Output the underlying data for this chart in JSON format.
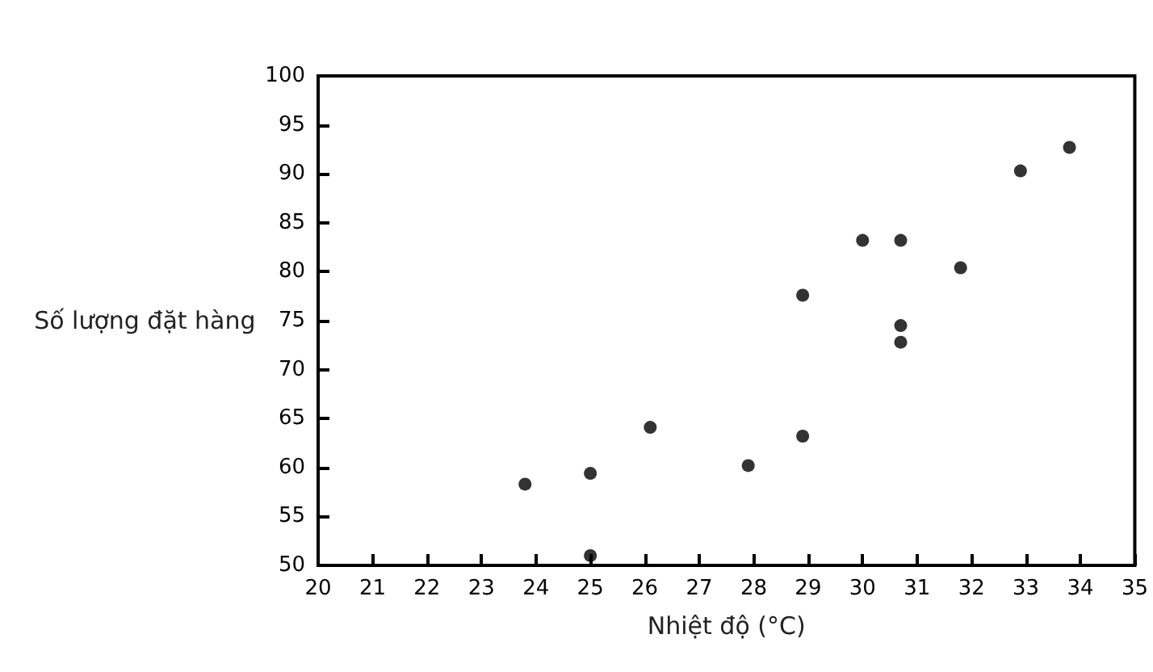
{
  "chart_data": {
    "type": "scatter",
    "xlabel": "Nhiệt độ (°C)",
    "ylabel": "Số lượng đặt hàng",
    "x": [
      23.8,
      25.0,
      25.0,
      26.1,
      27.9,
      28.9,
      28.9,
      30.0,
      30.7,
      30.7,
      30.7,
      31.8,
      32.9,
      33.8
    ],
    "values": [
      58.3,
      59.4,
      51.0,
      64.1,
      60.2,
      77.6,
      63.2,
      83.2,
      83.2,
      74.5,
      72.8,
      80.4,
      90.3,
      92.7
    ],
    "color": "#000000",
    "marker": "circle",
    "xlim": [
      20,
      35
    ],
    "xticks": [
      20,
      21,
      22,
      23,
      24,
      25,
      26,
      27,
      28,
      29,
      30,
      31,
      32,
      33,
      34,
      35
    ],
    "ylim": [
      50,
      100
    ],
    "yticks": [
      50,
      55,
      60,
      65,
      70,
      75,
      80,
      85,
      90,
      95,
      100
    ],
    "grid": false
  }
}
